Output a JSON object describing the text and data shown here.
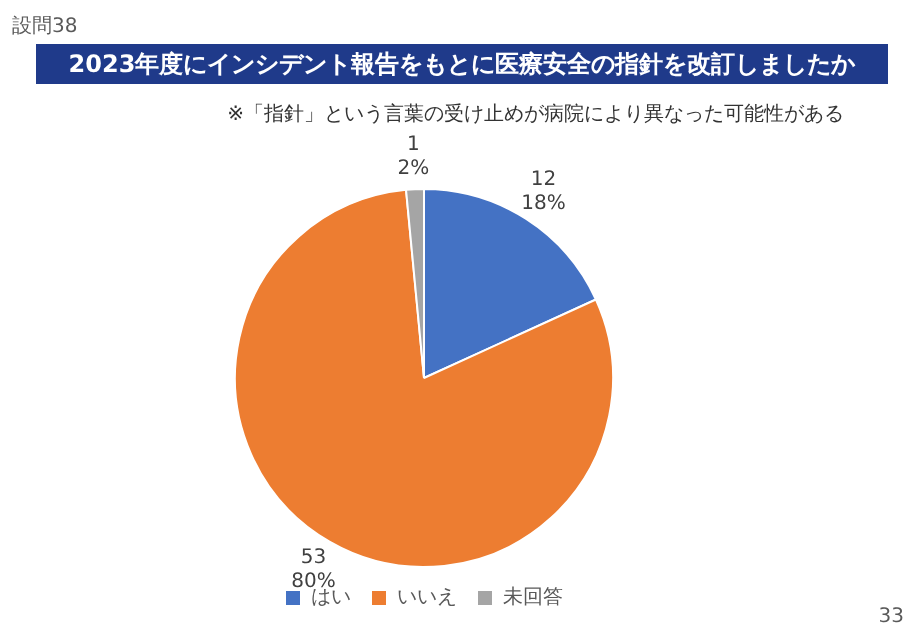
{
  "chart_data": {
    "type": "pie",
    "title": "2023年度にインシデント報告をもとに医療安全の指針を改訂しましたか",
    "annotations": [
      "設問38",
      "※「指針」という言葉の受け止めが病院により異なった可能性がある",
      "33"
    ],
    "categories": [
      "はい",
      "いいえ",
      "未回答"
    ],
    "values": [
      12,
      53,
      1
    ],
    "value_labels": [
      "12\n18%",
      "53\n80%",
      "1\n2%"
    ],
    "colors": [
      "#4472c4",
      "#ed7d31",
      "#a5a5a5"
    ],
    "legend": "bottom"
  }
}
